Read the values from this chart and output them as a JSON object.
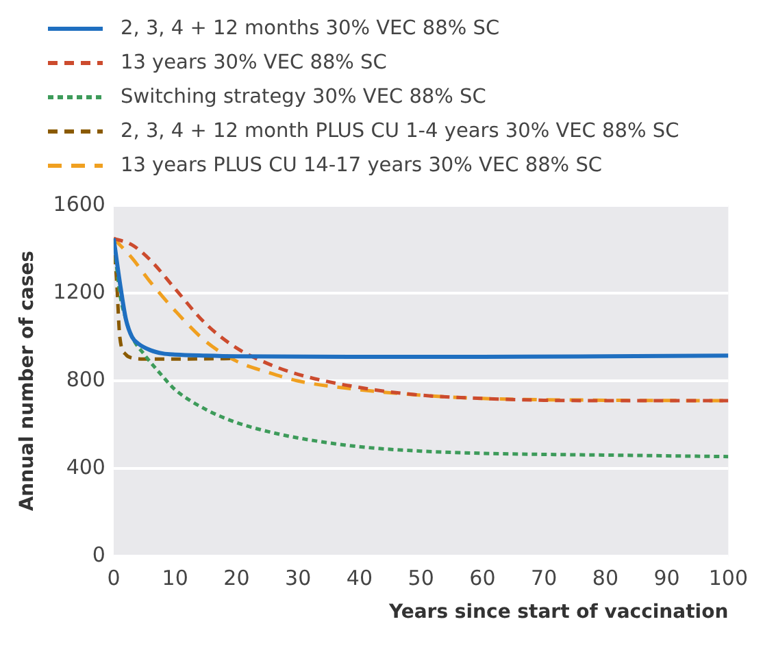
{
  "chart_data": {
    "type": "line",
    "xlabel": "Years since start of vaccination",
    "ylabel": "Annual number of cases",
    "xlim": [
      0,
      100
    ],
    "xticks": [
      0,
      10,
      20,
      30,
      40,
      50,
      60,
      70,
      80,
      90,
      100
    ],
    "ylim": [
      0,
      1600
    ],
    "yticks": [
      0,
      400,
      800,
      1200,
      1600
    ],
    "grid": "y",
    "legend": "top",
    "marker": "none",
    "series": [
      {
        "name": "2, 3, 4 + 12 months 30% VEC 88% SC",
        "color": "#1f6fc0",
        "line_style": "solid",
        "x": [
          0,
          1,
          2,
          3,
          4,
          6,
          8,
          10,
          15,
          20,
          40,
          60,
          80,
          100
        ],
        "values": [
          1450,
          1250,
          1080,
          1000,
          970,
          940,
          925,
          920,
          915,
          912,
          910,
          910,
          912,
          915
        ]
      },
      {
        "name": "13 years 30% VEC 88% SC",
        "color": "#cc4b2e",
        "line_style": "dashed",
        "x": [
          0,
          3,
          6,
          10,
          15,
          20,
          25,
          30,
          40,
          50,
          60,
          70,
          80,
          100
        ],
        "values": [
          1450,
          1420,
          1350,
          1220,
          1060,
          950,
          880,
          830,
          770,
          735,
          720,
          712,
          710,
          710
        ]
      },
      {
        "name": "Switching strategy 30% VEC 88% SC",
        "color": "#3d9b5a",
        "line_style": "dotted",
        "x": [
          0,
          1,
          2,
          3,
          5,
          8,
          10,
          15,
          20,
          25,
          30,
          40,
          50,
          60,
          70,
          80,
          100
        ],
        "values": [
          1450,
          1200,
          1080,
          1000,
          920,
          820,
          760,
          670,
          610,
          570,
          540,
          500,
          480,
          470,
          465,
          462,
          455
        ]
      },
      {
        "name": "2, 3, 4 + 12 month PLUS CU 1-4 years 30% VEC 88% SC",
        "color": "#8a5a00",
        "line_style": "dashed",
        "x": [
          0,
          0.5,
          1,
          2,
          3,
          5,
          10,
          20
        ],
        "values": [
          1450,
          1250,
          1000,
          920,
          905,
          900,
          900,
          902
        ]
      },
      {
        "name": "13 years PLUS CU 14-17 years 30% VEC 88% SC",
        "color": "#f0a020",
        "line_style": "dashed",
        "x": [
          0,
          3,
          6,
          10,
          15,
          20,
          25,
          30,
          40,
          50,
          60,
          80,
          100
        ],
        "values": [
          1450,
          1360,
          1250,
          1120,
          980,
          890,
          840,
          800,
          760,
          735,
          720,
          712,
          710
        ]
      }
    ]
  }
}
